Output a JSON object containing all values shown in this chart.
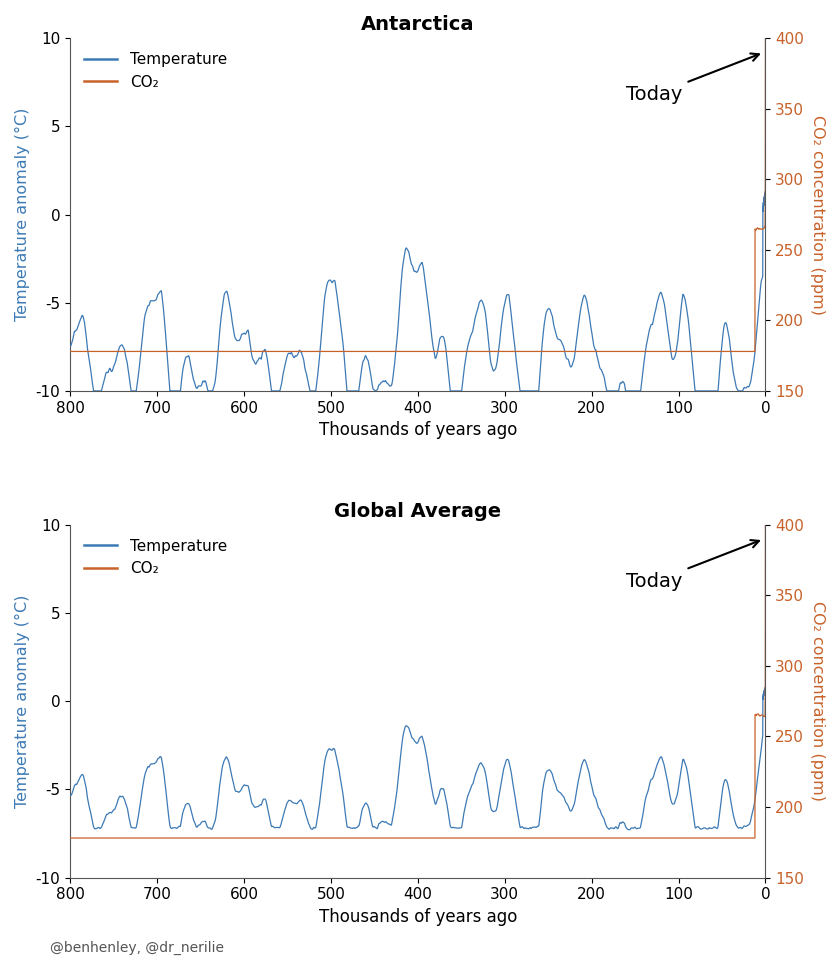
{
  "title1": "Antarctica",
  "title2": "Global Average",
  "xlabel": "Thousands of years ago",
  "ylabel_left": "Temperature anomaly (°C)",
  "ylabel_right": "CO₂ concentration (ppm)",
  "temp_color": "#3d7ab5",
  "co2_color": "#c8622a",
  "ylim_temp": [
    -10,
    10
  ],
  "ylim_co2": [
    150,
    400
  ],
  "xticks": [
    800,
    700,
    600,
    500,
    400,
    300,
    200,
    100,
    0
  ],
  "yticks_temp": [
    -10,
    -5,
    0,
    5,
    10
  ],
  "yticks_co2": [
    150,
    200,
    250,
    300,
    350,
    400
  ],
  "legend_temp": "Temperature",
  "legend_co2": "CO₂",
  "annotation": "Today",
  "credit": "@benhenley, @dr_nerilie",
  "background_color": "#ffffff",
  "line_width": 0.9
}
